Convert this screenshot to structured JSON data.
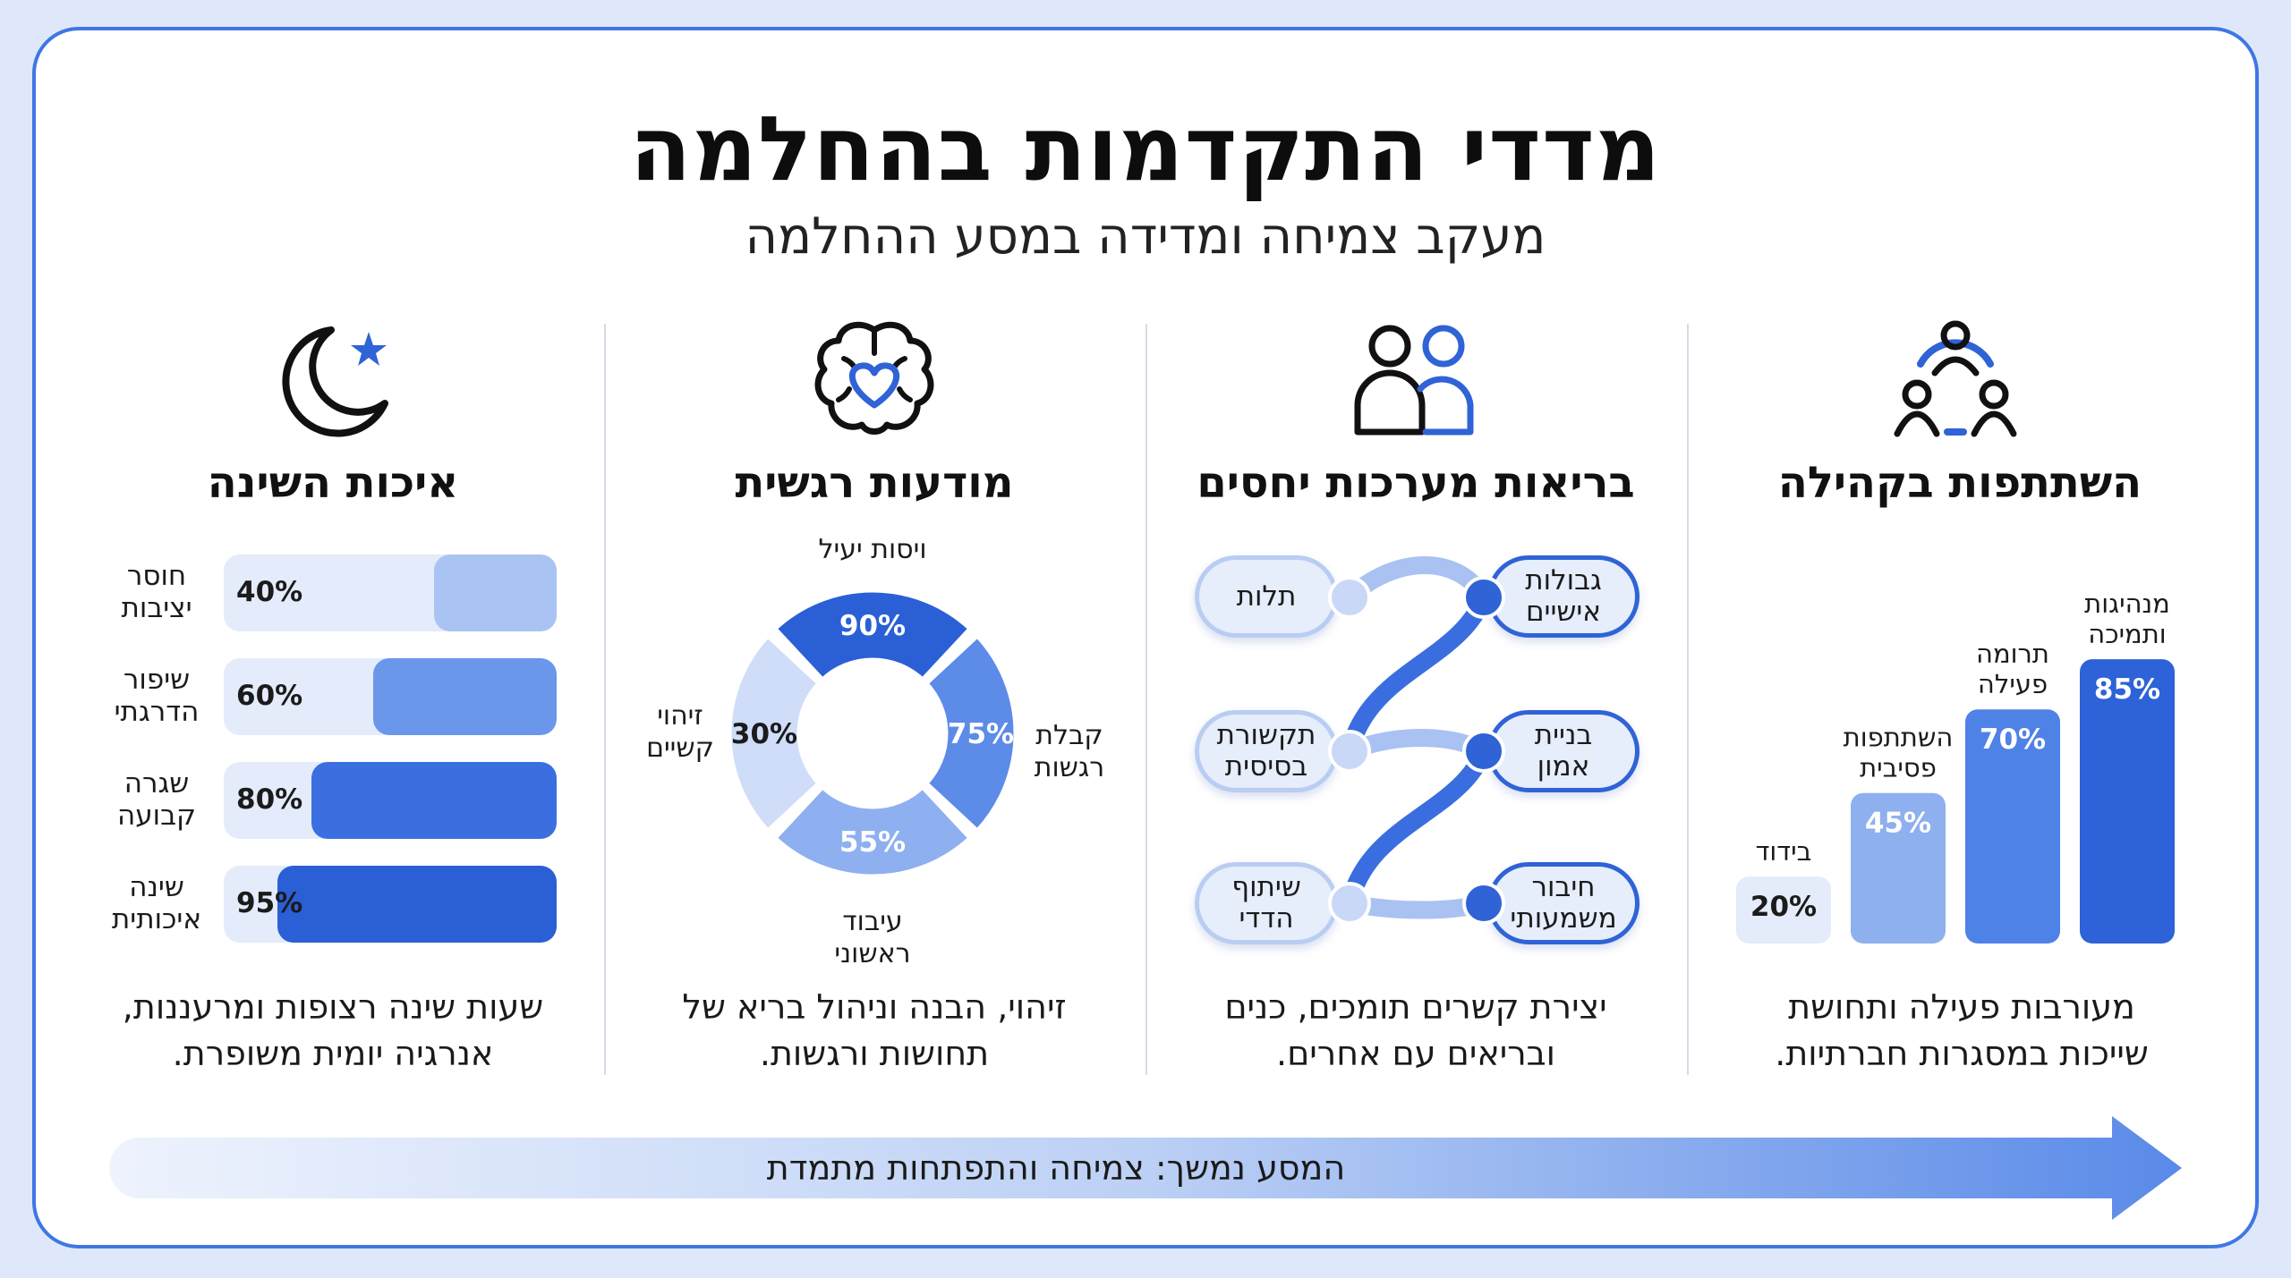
{
  "title": "מדדי התקדמות בהחלמה",
  "subtitle": "מעקב צמיחה ומדידה במסע ההחלמה",
  "colors": {
    "primary": "#2f63d6",
    "light": "#c9d8f6",
    "frame": "#3f77e3"
  },
  "columns": {
    "community": {
      "icon": "community-people-icon",
      "title": "השתתפות בקהילה",
      "description_line1": "מעורבות פעילה ותחושת",
      "description_line2": "שייכות במסגרות חברתיות."
    },
    "relationships": {
      "icon": "two-people-icon",
      "title": "בריאות מערכות יחסים",
      "description_line1": "יצירת קשרים תומכים, כנים",
      "description_line2": "ובריאים עם אחרים."
    },
    "emotional": {
      "icon": "brain-heart-icon",
      "title": "מודעות רגשית",
      "description_line1": "זיהוי, הבנה וניהול בריא של",
      "description_line2": "תחושות ורגשות."
    },
    "sleep": {
      "icon": "moon-star-icon",
      "title": "איכות השינה",
      "description_line1": "שעות שינה רצופות ומרעננות,",
      "description_line2": "אנרגיה יומית משופרת."
    }
  },
  "relationship_nodes": {
    "right": [
      {
        "line1": "גבולות",
        "line2": "אישיים"
      },
      {
        "line1": "בניית",
        "line2": "אמון"
      },
      {
        "line1": "חיבור",
        "line2": "משמעותי"
      }
    ],
    "left": [
      {
        "line1": "תלות",
        "line2": ""
      },
      {
        "line1": "תקשורת",
        "line2": "בסיסית"
      },
      {
        "line1": "שיתוף",
        "line2": "הדדי"
      }
    ]
  },
  "chart_data": [
    {
      "type": "bar",
      "categories": [
        "בידוד",
        "השתתפות פסיבית",
        "תרומה פעילה",
        "מנהיגות ותמיכה"
      ],
      "category_lines": [
        [
          "בידוד"
        ],
        [
          "השתתפות",
          "פסיבית"
        ],
        [
          "תרומה",
          "פעילה"
        ],
        [
          "מנהיגות",
          "ותמיכה"
        ]
      ],
      "values": [
        20,
        45,
        70,
        85
      ],
      "value_labels": [
        "20%",
        "45%",
        "70%",
        "85%"
      ],
      "bar_colors": [
        "#e4ebfa",
        "#8fb0ee",
        "#4f82e6",
        "#2d62d8"
      ],
      "ylim": [
        0,
        100
      ]
    },
    {
      "type": "pie",
      "categories": [
        "ויסות יעיל",
        "קבלת רגשות",
        "עיבוד ראשוני",
        "זיהוי קשיים"
      ],
      "category_lines": [
        [
          "ויסות יעיל"
        ],
        [
          "קבלת",
          "רגשות"
        ],
        [
          "עיבוד",
          "ראשוני"
        ],
        [
          "זיהוי",
          "קשיים"
        ]
      ],
      "values": [
        90,
        75,
        55,
        30
      ],
      "value_labels": [
        "90%",
        "75%",
        "55%",
        "30%"
      ],
      "slice_colors": [
        "#2a5fd6",
        "#5c8be8",
        "#8eb0f0",
        "#cfddf8"
      ]
    },
    {
      "type": "bar",
      "orientation": "horizontal",
      "categories": [
        "חוסר יציבות",
        "שיפור הדרגתי",
        "שגרה קבועה",
        "שינה איכותית"
      ],
      "category_lines": [
        [
          "חוסר",
          "יציבות"
        ],
        [
          "שיפור",
          "הדרגתי"
        ],
        [
          "שגרה",
          "קבועה"
        ],
        [
          "שינה",
          "איכותית"
        ]
      ],
      "values": [
        40,
        60,
        80,
        95
      ],
      "value_labels": [
        "40%",
        "60%",
        "80%",
        "95%"
      ],
      "bar_colors": [
        "#a9c3f3",
        "#6b97eb",
        "#3b6fe0",
        "#2a5fd6"
      ],
      "xlim": [
        0,
        100
      ]
    }
  ],
  "footer_arrow": "המסע נמשך: צמיחה והתפתחות מתמדת"
}
